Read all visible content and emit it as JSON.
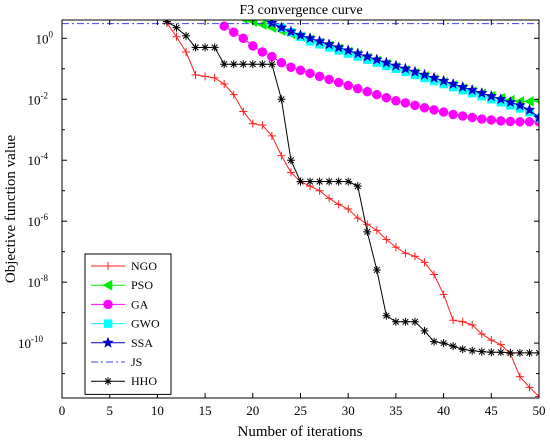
{
  "chart_data": {
    "type": "line",
    "title": "F3 convergence curve",
    "xlabel": "Number of iterations",
    "ylabel": "Objective function value",
    "xlim": [
      0,
      50
    ],
    "ylim_log10": [
      -11.8,
      0.6
    ],
    "yscale": "log",
    "grid": false,
    "legend_position": "lower-left",
    "x_ticks": [
      "0",
      "5",
      "10",
      "15",
      "20",
      "25",
      "30",
      "35",
      "40",
      "45",
      "50"
    ],
    "y_ticks": [
      {
        "base": "10",
        "exp": "0",
        "log10": 0
      },
      {
        "base": "10",
        "exp": "-2",
        "log10": -2
      },
      {
        "base": "10",
        "exp": "-4",
        "log10": -4
      },
      {
        "base": "10",
        "exp": "-6",
        "log10": -6
      },
      {
        "base": "10",
        "exp": "-8",
        "log10": -8
      },
      {
        "base": "10",
        "exp": "-10",
        "log10": -10
      }
    ],
    "series": [
      {
        "name": "NGO",
        "color": "#ff2020",
        "marker": "plus",
        "dash": "",
        "points": [
          [
            10,
            1.2
          ],
          [
            11,
            0.5
          ],
          [
            12,
            0.05
          ],
          [
            13,
            -0.45
          ],
          [
            14,
            -1.2
          ],
          [
            15,
            -1.25
          ],
          [
            16,
            -1.3
          ],
          [
            17,
            -1.5
          ],
          [
            18,
            -1.85
          ],
          [
            19,
            -2.4
          ],
          [
            20,
            -2.8
          ],
          [
            21,
            -2.85
          ],
          [
            22,
            -3.2
          ],
          [
            23,
            -3.85
          ],
          [
            24,
            -4.4
          ],
          [
            25,
            -4.7
          ],
          [
            26,
            -4.85
          ],
          [
            27,
            -5.0
          ],
          [
            28,
            -5.25
          ],
          [
            29,
            -5.45
          ],
          [
            30,
            -5.6
          ],
          [
            31,
            -5.9
          ],
          [
            32,
            -6.1
          ],
          [
            33,
            -6.3
          ],
          [
            34,
            -6.6
          ],
          [
            35,
            -6.85
          ],
          [
            36,
            -7.05
          ],
          [
            37,
            -7.15
          ],
          [
            38,
            -7.35
          ],
          [
            39,
            -7.75
          ],
          [
            40,
            -8.4
          ],
          [
            41,
            -9.25
          ],
          [
            42,
            -9.3
          ],
          [
            43,
            -9.4
          ],
          [
            44,
            -9.7
          ],
          [
            45,
            -9.9
          ],
          [
            46,
            -10.05
          ],
          [
            47,
            -10.35
          ],
          [
            48,
            -11.1
          ],
          [
            49,
            -11.45
          ],
          [
            50,
            -11.75
          ]
        ]
      },
      {
        "name": "PSO",
        "color": "#00ee00",
        "marker": "triangle-left",
        "dash": "",
        "points": [
          [
            17,
            1.0
          ],
          [
            18,
            0.8
          ],
          [
            19,
            0.65
          ],
          [
            20,
            0.55
          ],
          [
            21,
            0.45
          ],
          [
            22,
            0.35
          ],
          [
            23,
            0.25
          ],
          [
            24,
            0.15
          ],
          [
            25,
            0.05
          ],
          [
            26,
            -0.05
          ],
          [
            27,
            -0.15
          ],
          [
            28,
            -0.25
          ],
          [
            29,
            -0.35
          ],
          [
            30,
            -0.45
          ],
          [
            31,
            -0.55
          ],
          [
            32,
            -0.65
          ],
          [
            33,
            -0.75
          ],
          [
            34,
            -0.85
          ],
          [
            35,
            -0.95
          ],
          [
            36,
            -1.05
          ],
          [
            37,
            -1.15
          ],
          [
            38,
            -1.25
          ],
          [
            39,
            -1.35
          ],
          [
            40,
            -1.45
          ],
          [
            41,
            -1.55
          ],
          [
            42,
            -1.65
          ],
          [
            43,
            -1.75
          ],
          [
            44,
            -1.82
          ],
          [
            45,
            -1.9
          ],
          [
            46,
            -1.97
          ],
          [
            47,
            -2.03
          ],
          [
            48,
            -2.07
          ],
          [
            49,
            -2.07
          ],
          [
            50,
            -2.05
          ]
        ]
      },
      {
        "name": "GA",
        "color": "#ff00ff",
        "marker": "circle",
        "dash": "",
        "points": [
          [
            17,
            0.4
          ],
          [
            18,
            0.2
          ],
          [
            19,
            0.0
          ],
          [
            20,
            -0.25
          ],
          [
            21,
            -0.45
          ],
          [
            22,
            -0.6
          ],
          [
            23,
            -0.8
          ],
          [
            24,
            -0.95
          ],
          [
            25,
            -1.05
          ],
          [
            26,
            -1.15
          ],
          [
            27,
            -1.25
          ],
          [
            28,
            -1.35
          ],
          [
            29,
            -1.45
          ],
          [
            30,
            -1.55
          ],
          [
            31,
            -1.65
          ],
          [
            32,
            -1.75
          ],
          [
            33,
            -1.85
          ],
          [
            34,
            -1.95
          ],
          [
            35,
            -2.05
          ],
          [
            36,
            -2.12
          ],
          [
            37,
            -2.2
          ],
          [
            38,
            -2.28
          ],
          [
            39,
            -2.35
          ],
          [
            40,
            -2.42
          ],
          [
            41,
            -2.5
          ],
          [
            42,
            -2.55
          ],
          [
            43,
            -2.6
          ],
          [
            44,
            -2.65
          ],
          [
            45,
            -2.68
          ],
          [
            46,
            -2.71
          ],
          [
            47,
            -2.73
          ],
          [
            48,
            -2.74
          ],
          [
            49,
            -2.74
          ],
          [
            50,
            -2.74
          ]
        ]
      },
      {
        "name": "GWO",
        "color": "#00ffff",
        "marker": "square",
        "dash": "",
        "points": [
          [
            21,
            0.75
          ],
          [
            22,
            0.55
          ],
          [
            23,
            0.35
          ],
          [
            24,
            0.2
          ],
          [
            25,
            0.05
          ],
          [
            26,
            -0.1
          ],
          [
            27,
            -0.2
          ],
          [
            28,
            -0.3
          ],
          [
            29,
            -0.4
          ],
          [
            30,
            -0.5
          ],
          [
            31,
            -0.6
          ],
          [
            32,
            -0.7
          ],
          [
            33,
            -0.8
          ],
          [
            34,
            -0.9
          ],
          [
            35,
            -1.0
          ],
          [
            36,
            -1.1
          ],
          [
            37,
            -1.2
          ],
          [
            38,
            -1.3
          ],
          [
            39,
            -1.4
          ],
          [
            40,
            -1.5
          ],
          [
            41,
            -1.6
          ],
          [
            42,
            -1.7
          ],
          [
            43,
            -1.8
          ],
          [
            44,
            -1.9
          ],
          [
            45,
            -2.0
          ],
          [
            46,
            -2.1
          ],
          [
            47,
            -2.2
          ],
          [
            48,
            -2.3
          ],
          [
            49,
            -2.42
          ],
          [
            50,
            -2.62
          ]
        ]
      },
      {
        "name": "SSA",
        "color": "#0000cc",
        "marker": "star",
        "dash": "",
        "points": [
          [
            22,
            0.5
          ],
          [
            23,
            0.35
          ],
          [
            24,
            0.22
          ],
          [
            25,
            0.1
          ],
          [
            26,
            0.0
          ],
          [
            27,
            -0.1
          ],
          [
            28,
            -0.2
          ],
          [
            29,
            -0.3
          ],
          [
            30,
            -0.4
          ],
          [
            31,
            -0.5
          ],
          [
            32,
            -0.6
          ],
          [
            33,
            -0.7
          ],
          [
            34,
            -0.8
          ],
          [
            35,
            -0.9
          ],
          [
            36,
            -1.0
          ],
          [
            37,
            -1.1
          ],
          [
            38,
            -1.2
          ],
          [
            39,
            -1.3
          ],
          [
            40,
            -1.4
          ],
          [
            41,
            -1.5
          ],
          [
            42,
            -1.6
          ],
          [
            43,
            -1.7
          ],
          [
            44,
            -1.8
          ],
          [
            45,
            -1.9
          ],
          [
            46,
            -2.0
          ],
          [
            47,
            -2.1
          ],
          [
            48,
            -2.2
          ],
          [
            49,
            -2.35
          ],
          [
            50,
            -2.6
          ]
        ]
      },
      {
        "name": "JS",
        "color": "#4040ee",
        "marker": "none",
        "dash": "7 3 2 3",
        "points": [
          [
            0,
            0.48
          ],
          [
            50,
            0.48
          ]
        ]
      },
      {
        "name": "HHO",
        "color": "#000000",
        "marker": "asterisk",
        "dash": "",
        "points": [
          [
            10,
            1.3
          ],
          [
            11,
            0.55
          ],
          [
            12,
            0.35
          ],
          [
            13,
            0.08
          ],
          [
            14,
            -0.3
          ],
          [
            15,
            -0.3
          ],
          [
            16,
            -0.3
          ],
          [
            17,
            -0.85
          ],
          [
            18,
            -0.85
          ],
          [
            19,
            -0.85
          ],
          [
            20,
            -0.85
          ],
          [
            21,
            -0.85
          ],
          [
            22,
            -0.85
          ],
          [
            23,
            -2.0
          ],
          [
            24,
            -4.0
          ],
          [
            25,
            -4.7
          ],
          [
            26,
            -4.7
          ],
          [
            27,
            -4.7
          ],
          [
            28,
            -4.7
          ],
          [
            29,
            -4.7
          ],
          [
            30,
            -4.7
          ],
          [
            31,
            -4.85
          ],
          [
            32,
            -6.35
          ],
          [
            33,
            -7.6
          ],
          [
            34,
            -9.1
          ],
          [
            35,
            -9.3
          ],
          [
            36,
            -9.3
          ],
          [
            37,
            -9.3
          ],
          [
            38,
            -9.6
          ],
          [
            39,
            -9.95
          ],
          [
            40,
            -10.0
          ],
          [
            41,
            -10.1
          ],
          [
            42,
            -10.2
          ],
          [
            43,
            -10.25
          ],
          [
            44,
            -10.28
          ],
          [
            45,
            -10.3
          ],
          [
            46,
            -10.3
          ],
          [
            47,
            -10.32
          ],
          [
            48,
            -10.32
          ],
          [
            49,
            -10.32
          ],
          [
            50,
            -10.32
          ]
        ]
      }
    ]
  }
}
